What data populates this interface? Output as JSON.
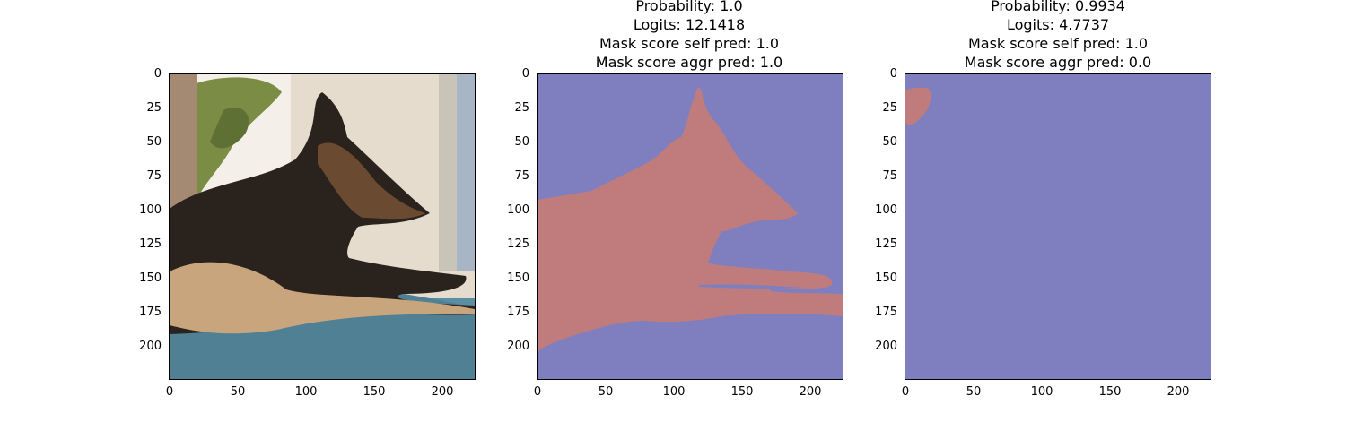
{
  "figure": {
    "panels": [
      {
        "id": "input-image",
        "title_lines": [],
        "content": "photo",
        "photo_subject": "German shepherd dog lying on a blue rug by a window"
      },
      {
        "id": "mask-1",
        "title_lines": [
          "Probability: 1.0",
          "Logits: 12.1418",
          "Mask score self pred: 1.0",
          "Mask score aggr pred: 1.0"
        ],
        "content": "mask",
        "mask_shape": "dog silhouette"
      },
      {
        "id": "mask-2",
        "title_lines": [
          "Probability: 0.9934",
          "Logits: 4.7737",
          "Mask score self pred: 1.0",
          "Mask score aggr pred: 0.0"
        ],
        "content": "mask",
        "mask_shape": "small blob top-left"
      }
    ],
    "y_ticks": [
      "0",
      "25",
      "50",
      "75",
      "100",
      "125",
      "150",
      "175",
      "200"
    ],
    "x_ticks": [
      "0",
      "50",
      "100",
      "150",
      "200"
    ],
    "image_extent": [
      0,
      224
    ],
    "colors": {
      "mask_foreground": "#c07c7c",
      "mask_background": "#7f7fbf",
      "rug": "#5b8ea0",
      "wall": "#e6dccd"
    }
  }
}
